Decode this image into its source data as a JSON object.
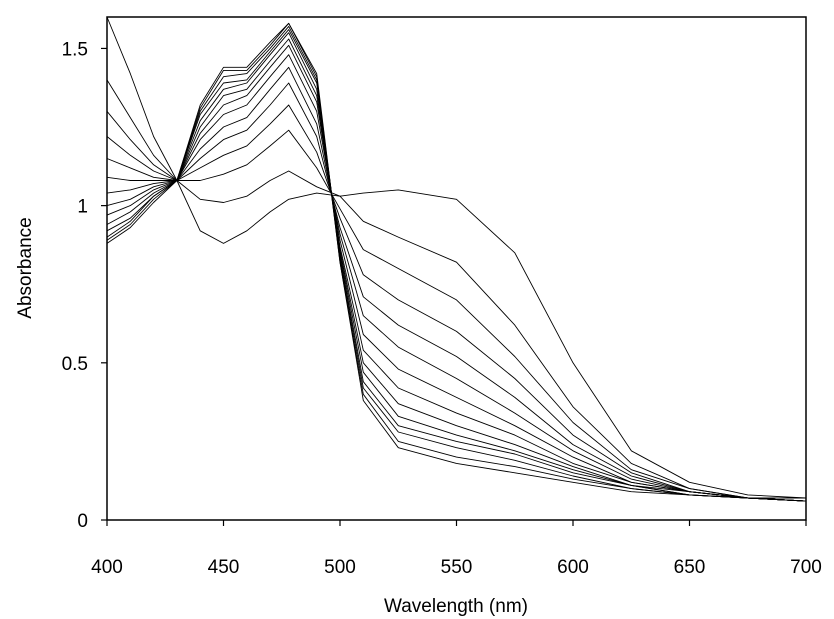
{
  "chart_data": {
    "type": "line",
    "title": "",
    "xlabel": "Wavelength (nm)",
    "ylabel": "Absorbance",
    "xlim": [
      400,
      700
    ],
    "ylim": [
      0,
      1.6
    ],
    "xticks": [
      400,
      450,
      500,
      550,
      600,
      650,
      700
    ],
    "yticks": [
      0,
      0.5,
      1,
      1.5
    ],
    "ytick_labels": [
      "0",
      "0.5",
      "1",
      "1.5"
    ],
    "grid": false,
    "legend": "none",
    "x": [
      400,
      410,
      420,
      430,
      440,
      450,
      460,
      470,
      478,
      490,
      500,
      510,
      525,
      550,
      575,
      600,
      625,
      650,
      675,
      700
    ],
    "series": [
      {
        "values": [
          1.62,
          1.42,
          1.22,
          1.08,
          0.92,
          0.88,
          0.92,
          0.98,
          1.02,
          1.04,
          1.03,
          1.04,
          1.05,
          1.02,
          0.85,
          0.5,
          0.22,
          0.12,
          0.08,
          0.07
        ]
      },
      {
        "values": [
          1.4,
          1.28,
          1.16,
          1.08,
          1.02,
          1.01,
          1.03,
          1.08,
          1.11,
          1.06,
          1.03,
          0.95,
          0.9,
          0.82,
          0.62,
          0.36,
          0.18,
          0.1,
          0.07,
          0.07
        ]
      },
      {
        "values": [
          1.3,
          1.21,
          1.13,
          1.08,
          1.08,
          1.1,
          1.13,
          1.19,
          1.24,
          1.12,
          0.99,
          0.86,
          0.8,
          0.7,
          0.52,
          0.31,
          0.16,
          0.1,
          0.07,
          0.06
        ]
      },
      {
        "values": [
          1.22,
          1.16,
          1.11,
          1.08,
          1.12,
          1.16,
          1.19,
          1.26,
          1.32,
          1.17,
          0.96,
          0.78,
          0.7,
          0.6,
          0.45,
          0.27,
          0.15,
          0.09,
          0.07,
          0.06
        ]
      },
      {
        "values": [
          1.15,
          1.12,
          1.09,
          1.08,
          1.15,
          1.21,
          1.24,
          1.32,
          1.39,
          1.22,
          0.93,
          0.71,
          0.62,
          0.52,
          0.39,
          0.24,
          0.14,
          0.09,
          0.07,
          0.06
        ]
      },
      {
        "values": [
          1.09,
          1.08,
          1.08,
          1.08,
          1.18,
          1.25,
          1.28,
          1.37,
          1.44,
          1.26,
          0.91,
          0.65,
          0.55,
          0.45,
          0.34,
          0.22,
          0.13,
          0.09,
          0.07,
          0.06
        ]
      },
      {
        "values": [
          1.04,
          1.05,
          1.07,
          1.08,
          1.21,
          1.29,
          1.32,
          1.41,
          1.48,
          1.3,
          0.89,
          0.59,
          0.48,
          0.39,
          0.3,
          0.2,
          0.12,
          0.09,
          0.07,
          0.06
        ]
      },
      {
        "values": [
          1.0,
          1.02,
          1.06,
          1.08,
          1.23,
          1.32,
          1.35,
          1.44,
          1.51,
          1.33,
          0.87,
          0.54,
          0.42,
          0.34,
          0.27,
          0.18,
          0.12,
          0.09,
          0.07,
          0.06
        ]
      },
      {
        "values": [
          0.97,
          1.0,
          1.05,
          1.08,
          1.25,
          1.35,
          1.37,
          1.46,
          1.53,
          1.35,
          0.86,
          0.5,
          0.37,
          0.3,
          0.24,
          0.17,
          0.11,
          0.09,
          0.07,
          0.06
        ]
      },
      {
        "values": [
          0.94,
          0.98,
          1.04,
          1.08,
          1.27,
          1.37,
          1.39,
          1.48,
          1.55,
          1.37,
          0.85,
          0.47,
          0.33,
          0.27,
          0.22,
          0.16,
          0.11,
          0.08,
          0.07,
          0.06
        ]
      },
      {
        "values": [
          0.92,
          0.96,
          1.03,
          1.08,
          1.29,
          1.39,
          1.4,
          1.49,
          1.56,
          1.39,
          0.84,
          0.44,
          0.3,
          0.25,
          0.21,
          0.15,
          0.11,
          0.08,
          0.07,
          0.06
        ]
      },
      {
        "values": [
          0.9,
          0.95,
          1.03,
          1.08,
          1.3,
          1.41,
          1.42,
          1.5,
          1.57,
          1.4,
          0.83,
          0.42,
          0.28,
          0.23,
          0.19,
          0.14,
          0.1,
          0.08,
          0.07,
          0.06
        ]
      },
      {
        "values": [
          0.89,
          0.94,
          1.02,
          1.08,
          1.31,
          1.43,
          1.43,
          1.51,
          1.58,
          1.41,
          0.82,
          0.4,
          0.25,
          0.2,
          0.17,
          0.13,
          0.1,
          0.08,
          0.07,
          0.06
        ]
      },
      {
        "values": [
          0.88,
          0.93,
          1.01,
          1.08,
          1.32,
          1.44,
          1.44,
          1.52,
          1.58,
          1.42,
          0.82,
          0.38,
          0.23,
          0.18,
          0.15,
          0.12,
          0.09,
          0.08,
          0.07,
          0.06
        ]
      }
    ]
  }
}
